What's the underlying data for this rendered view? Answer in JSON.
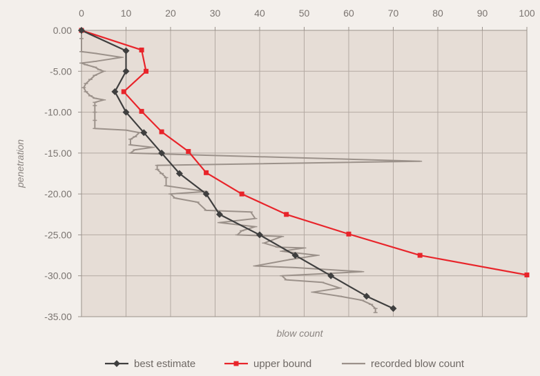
{
  "chart_data": {
    "type": "line",
    "title": "",
    "xlabel": "blow count",
    "ylabel": "penetration",
    "xlim": [
      0,
      100
    ],
    "ylim": [
      -35,
      0
    ],
    "x_ticks": [
      "0",
      "10",
      "20",
      "30",
      "40",
      "50",
      "60",
      "70",
      "80",
      "90",
      "100"
    ],
    "y_ticks": [
      "0.00",
      "-5.00",
      "-10.00",
      "-15.00",
      "-20.00",
      "-25.00",
      "-30.00",
      "-35.00"
    ],
    "x_axis_position": "top",
    "grid": true,
    "legend_position": "bottom",
    "series": [
      {
        "name": "best estimate",
        "color": "#3f3f3f",
        "marker": "diamond",
        "points": [
          [
            0,
            0
          ],
          [
            10,
            -2.5
          ],
          [
            10,
            -5
          ],
          [
            7.5,
            -7.5
          ],
          [
            10,
            -10
          ],
          [
            14,
            -12.5
          ],
          [
            18,
            -15
          ],
          [
            22,
            -17.5
          ],
          [
            28,
            -20
          ],
          [
            31,
            -22.5
          ],
          [
            40,
            -25
          ],
          [
            48,
            -27.5
          ],
          [
            56,
            -30
          ],
          [
            64,
            -32.5
          ],
          [
            70,
            -34
          ]
        ]
      },
      {
        "name": "upper bound",
        "color": "#e8242a",
        "marker": "square",
        "points": [
          [
            0,
            0
          ],
          [
            13.5,
            -2.4
          ],
          [
            14.5,
            -5
          ],
          [
            9.5,
            -7.5
          ],
          [
            13.5,
            -9.9
          ],
          [
            18,
            -12.4
          ],
          [
            24,
            -14.8
          ],
          [
            28,
            -17.4
          ],
          [
            36,
            -20
          ],
          [
            46,
            -22.5
          ],
          [
            60,
            -24.9
          ],
          [
            76,
            -27.5
          ],
          [
            100,
            -29.9
          ]
        ]
      },
      {
        "name": "recorded blow count",
        "color": "#9b918a",
        "marker": "dash",
        "points": [
          [
            0,
            0
          ],
          [
            0,
            -1
          ],
          [
            0,
            -2.6
          ],
          [
            3,
            -2.8
          ],
          [
            9,
            -3.3
          ],
          [
            3,
            -3.8
          ],
          [
            0,
            -4
          ],
          [
            1,
            -4.2
          ],
          [
            3,
            -4.5
          ],
          [
            4,
            -4.8
          ],
          [
            5,
            -5
          ],
          [
            3,
            -5.5
          ],
          [
            2,
            -6
          ],
          [
            1,
            -6.5
          ],
          [
            0.5,
            -7
          ],
          [
            1,
            -7.5
          ],
          [
            2,
            -8
          ],
          [
            3,
            -8.3
          ],
          [
            5,
            -8.5
          ],
          [
            3,
            -8.8
          ],
          [
            3,
            -9.2
          ],
          [
            3,
            -10
          ],
          [
            3,
            -11
          ],
          [
            3,
            -12
          ],
          [
            10,
            -12.2
          ],
          [
            13,
            -12.5
          ],
          [
            12,
            -13
          ],
          [
            11,
            -13.3
          ],
          [
            11,
            -14
          ],
          [
            16,
            -14.3
          ],
          [
            12,
            -14.6
          ],
          [
            11,
            -15
          ],
          [
            76,
            -16
          ],
          [
            17,
            -16.5
          ],
          [
            17,
            -17
          ],
          [
            18,
            -17.5
          ],
          [
            19,
            -18
          ],
          [
            19,
            -19
          ],
          [
            28,
            -19.7
          ],
          [
            20,
            -20
          ],
          [
            21,
            -20.5
          ],
          [
            26,
            -21
          ],
          [
            28,
            -22
          ],
          [
            38,
            -22.2
          ],
          [
            39,
            -23
          ],
          [
            31,
            -23.5
          ],
          [
            39,
            -24
          ],
          [
            36,
            -24.5
          ],
          [
            35,
            -25
          ],
          [
            45,
            -25.2
          ],
          [
            41,
            -26
          ],
          [
            44,
            -26.5
          ],
          [
            50,
            -26.6
          ],
          [
            45,
            -27
          ],
          [
            53,
            -27.5
          ],
          [
            47,
            -28
          ],
          [
            39,
            -28.8
          ],
          [
            48,
            -29
          ],
          [
            63,
            -29.5
          ],
          [
            45,
            -30
          ],
          [
            46,
            -30.5
          ],
          [
            54,
            -30.8
          ],
          [
            58,
            -31.5
          ],
          [
            52,
            -32
          ],
          [
            58,
            -32.5
          ],
          [
            63,
            -33
          ],
          [
            65,
            -33.5
          ],
          [
            66,
            -34
          ],
          [
            66,
            -34.5
          ]
        ]
      }
    ]
  }
}
